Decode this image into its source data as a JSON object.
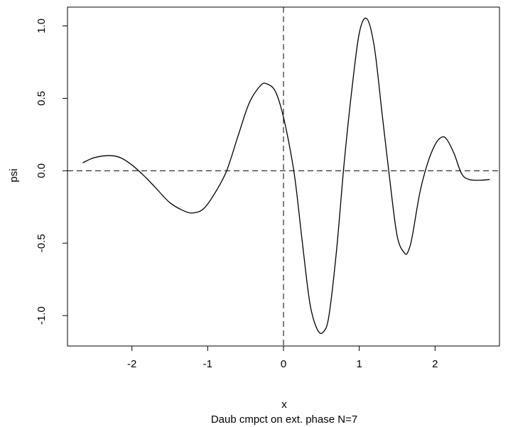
{
  "chart_data": {
    "type": "line",
    "xlabel": "x",
    "ylabel": "psi",
    "subtitle": "Daub cmpct on ext. phase N=7",
    "xlim": [
      -2.85,
      2.85
    ],
    "ylim": [
      -1.21,
      1.13
    ],
    "x_ticks": [
      -2,
      -1,
      0,
      1,
      2
    ],
    "x_tick_labels": [
      "-2",
      "-1",
      "0",
      "1",
      "2"
    ],
    "y_ticks": [
      -1.0,
      -0.5,
      0.0,
      0.5,
      1.0
    ],
    "y_tick_labels": [
      "-1.0",
      "-0.5",
      "0.0",
      "0.5",
      "1.0"
    ],
    "reference_lines": {
      "horizontal_y": 0,
      "vertical_x": 0,
      "style": "dashed"
    },
    "grid": false,
    "series": [
      {
        "x": [
          -2.65,
          -2.5,
          -2.3,
          -2.15,
          -2.0,
          -1.85,
          -1.7,
          -1.5,
          -1.3,
          -1.18,
          -1.05,
          -0.9,
          -0.75,
          -0.6,
          -0.45,
          -0.3,
          -0.22,
          -0.12,
          -0.04,
          0.05,
          0.15,
          0.25,
          0.35,
          0.45,
          0.53,
          0.6,
          0.7,
          0.8,
          0.9,
          1.0,
          1.1,
          1.2,
          1.3,
          1.4,
          1.5,
          1.6,
          1.65,
          1.7,
          1.8,
          1.9,
          2.0,
          2.08,
          2.15,
          2.25,
          2.35,
          2.45,
          2.6,
          2.72
        ],
        "y": [
          0.055,
          0.09,
          0.105,
          0.09,
          0.04,
          -0.03,
          -0.11,
          -0.22,
          -0.28,
          -0.29,
          -0.26,
          -0.15,
          0.0,
          0.24,
          0.47,
          0.59,
          0.6,
          0.56,
          0.45,
          0.25,
          -0.05,
          -0.5,
          -0.92,
          -1.1,
          -1.11,
          -1.0,
          -0.55,
          0.05,
          0.55,
          0.95,
          1.05,
          0.85,
          0.4,
          -0.05,
          -0.45,
          -0.57,
          -0.55,
          -0.45,
          -0.15,
          0.05,
          0.18,
          0.23,
          0.22,
          0.12,
          -0.02,
          -0.06,
          -0.065,
          -0.06
        ]
      }
    ]
  }
}
